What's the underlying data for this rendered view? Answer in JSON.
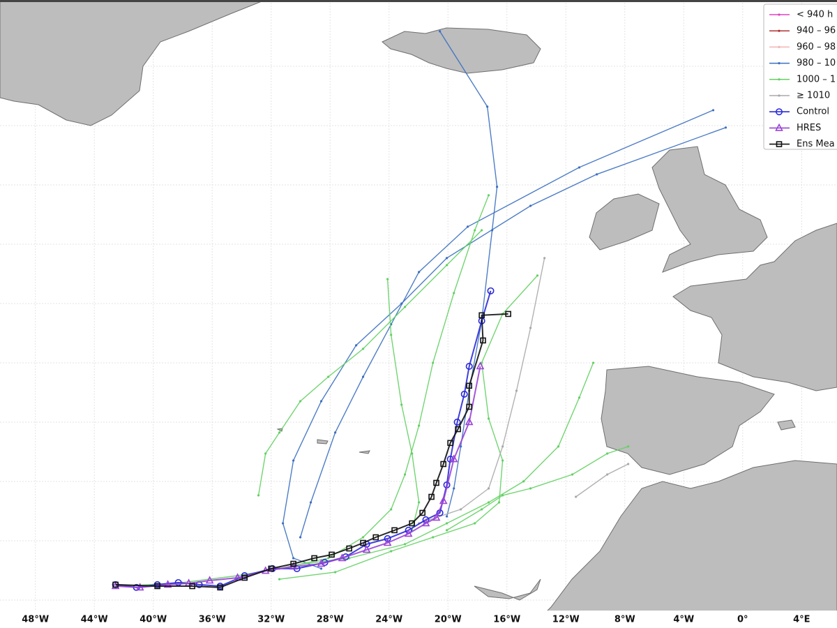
{
  "chart_data": {
    "type": "track-map",
    "xlim": [
      -50.4,
      6.4
    ],
    "ylim": [
      26.8,
      68.3
    ],
    "xticks": [
      {
        "value": -48,
        "label": "48°W"
      },
      {
        "value": -44,
        "label": "44°W"
      },
      {
        "value": -40,
        "label": "40°W"
      },
      {
        "value": -36,
        "label": "36°W"
      },
      {
        "value": -32,
        "label": "32°W"
      },
      {
        "value": -28,
        "label": "28°W"
      },
      {
        "value": -24,
        "label": "24°W"
      },
      {
        "value": -20,
        "label": "20°W"
      },
      {
        "value": -16,
        "label": "16°W"
      },
      {
        "value": -12,
        "label": "12°W"
      },
      {
        "value": -8,
        "label": "8°W"
      },
      {
        "value": -4,
        "label": "4°W"
      },
      {
        "value": 0,
        "label": "0°"
      },
      {
        "value": 4,
        "label": "4°E"
      }
    ],
    "legend": [
      {
        "label": "< 940 h",
        "color": "#e040c0"
      },
      {
        "label": "940 – 96",
        "color": "#b03030"
      },
      {
        "label": "960 – 98",
        "color": "#f2b4b4"
      },
      {
        "label": "980 – 10",
        "color": "#3a6fc0"
      },
      {
        "label": "1000 – 1",
        "color": "#62d062"
      },
      {
        "label": "≥ 1010",
        "color": "#a8a8a8"
      }
    ],
    "tracks": [
      {
        "color": "#3a6fc0",
        "lon": [
          -20.55,
          -17.33,
          -16.67,
          -17.0,
          -17.71,
          -18.56,
          -19.13,
          -19.6,
          -20.08
        ],
        "lat": [
          66.17,
          61.05,
          55.6,
          52.65,
          46.49,
          41.74,
          37.95,
          35.1,
          33.2
        ]
      },
      {
        "color": "#3a6fc0",
        "lon": [
          -1.15,
          -9.9,
          -14.4,
          -20.08,
          -23.15,
          -26.23,
          -28.6,
          -30.49,
          -31.2,
          -30.49,
          -28.6
        ],
        "lat": [
          59.63,
          56.45,
          54.31,
          50.76,
          47.67,
          44.83,
          41.03,
          37.0,
          32.73,
          30.36,
          29.65
        ]
      },
      {
        "color": "#3a6fc0",
        "lon": [
          -2.0,
          -11.09,
          -18.66,
          -21.97,
          -23.86,
          -25.76,
          -27.65,
          -29.31,
          -30.02
        ],
        "lat": [
          60.81,
          56.92,
          52.89,
          49.81,
          46.25,
          42.69,
          38.9,
          34.15,
          31.78
        ]
      },
      {
        "color": "#62d062",
        "lon": [
          -17.24,
          -18.18,
          -19.6,
          -21.02,
          -21.97,
          -22.92,
          -23.86,
          -25.76,
          -28.12,
          -31.44,
          -34.28,
          -38.06,
          -41.85
        ],
        "lat": [
          55.03,
          52.65,
          48.38,
          43.64,
          39.37,
          36.05,
          33.68,
          31.78,
          30.36,
          29.65,
          29.17,
          28.7,
          28.46
        ]
      },
      {
        "color": "#62d062",
        "lon": [
          -13.93,
          -16.29,
          -17.71,
          -17.24,
          -16.29,
          -16.53,
          -18.18,
          -21.02,
          -23.86,
          -27.65,
          -31.44
        ],
        "lat": [
          49.57,
          46.96,
          43.64,
          39.85,
          37.0,
          34.15,
          32.73,
          31.78,
          30.83,
          29.41,
          28.93
        ]
      },
      {
        "color": "#62d062",
        "lon": [
          -10.14,
          -11.09,
          -12.51,
          -14.87,
          -17.24,
          -20.08,
          -22.92,
          -26.7,
          -30.49
        ],
        "lat": [
          43.64,
          41.27,
          37.95,
          35.58,
          34.15,
          32.73,
          31.31,
          30.36,
          29.88
        ]
      },
      {
        "color": "#62d062",
        "lon": [
          -24.1,
          -23.86,
          -23.15,
          -22.44,
          -21.97,
          -22.44
        ],
        "lat": [
          49.33,
          45.54,
          40.79,
          37.47,
          34.15,
          32.26
        ]
      },
      {
        "color": "#62d062",
        "lon": [
          -32.86,
          -32.38,
          -31.44,
          -30.02,
          -28.12,
          -25.76,
          -22.92,
          -20.08,
          -17.71
        ],
        "lat": [
          34.63,
          37.47,
          38.9,
          41.03,
          42.69,
          44.59,
          47.44,
          50.28,
          52.65
        ]
      },
      {
        "color": "#62d062",
        "lon": [
          -7.77,
          -9.19,
          -11.56,
          -14.4,
          -16.29,
          -17.71,
          -20.08
        ],
        "lat": [
          37.95,
          37.47,
          36.05,
          35.1,
          34.63,
          33.68,
          32.26
        ]
      },
      {
        "color": "#a8a8a8",
        "lon": [
          -13.45,
          -14.4,
          -15.35,
          -16.29,
          -17.24,
          -19.13,
          -21.97
        ],
        "lat": [
          50.76,
          46.01,
          41.74,
          37.95,
          35.1,
          33.68,
          32.73
        ]
      },
      {
        "color": "#a8a8a8",
        "lon": [
          -7.77,
          -9.19,
          -11.32
        ],
        "lat": [
          36.76,
          36.05,
          34.53
        ]
      }
    ],
    "series": [
      {
        "name": "Control",
        "color": "#2a2ad8",
        "marker": "circle",
        "lon": [
          -42.56,
          -41.14,
          -39.72,
          -38.3,
          -36.88,
          -35.46,
          -33.8,
          -31.91,
          -30.25,
          -28.36,
          -26.94,
          -25.52,
          -24.1,
          -22.68,
          -21.5,
          -20.55,
          -20.08,
          -19.84,
          -19.37,
          -18.89,
          -18.56,
          -17.71,
          -17.1
        ],
        "lat": [
          28.56,
          28.37,
          28.56,
          28.7,
          28.56,
          28.46,
          29.17,
          29.65,
          29.65,
          30.07,
          30.45,
          31.31,
          31.69,
          32.26,
          32.97,
          33.44,
          35.34,
          37.09,
          39.61,
          41.51,
          43.4,
          46.49,
          48.53
        ]
      },
      {
        "name": "HRES",
        "color": "#9a44d6",
        "marker": "triangle",
        "lon": [
          -42.56,
          -40.9,
          -39.01,
          -37.59,
          -36.17,
          -34.28,
          -32.38,
          -30.49,
          -28.6,
          -27.18,
          -25.52,
          -24.1,
          -22.68,
          -21.5,
          -20.79,
          -20.31,
          -19.6,
          -18.56,
          -17.81
        ],
        "lat": [
          28.46,
          28.37,
          28.56,
          28.65,
          28.84,
          29.03,
          29.5,
          29.79,
          29.98,
          30.36,
          30.93,
          31.4,
          32.02,
          32.73,
          33.11,
          34.25,
          37.09,
          39.61,
          43.4
        ]
      },
      {
        "name": "Ens Mea",
        "color": "#111111",
        "marker": "square",
        "lon": [
          -42.56,
          -39.72,
          -37.35,
          -35.46,
          -33.8,
          -32.0,
          -30.49,
          -29.07,
          -27.89,
          -26.7,
          -25.76,
          -24.9,
          -23.63,
          -22.44,
          -21.73,
          -21.12,
          -20.79,
          -20.31,
          -19.84,
          -19.32,
          -18.56,
          -18.56,
          -17.62,
          -17.71,
          -15.91
        ],
        "lat": [
          28.56,
          28.46,
          28.46,
          28.37,
          29.03,
          29.65,
          29.98,
          30.36,
          30.6,
          31.02,
          31.4,
          31.78,
          32.26,
          32.73,
          33.44,
          34.53,
          35.48,
          36.76,
          38.19,
          39.13,
          40.65,
          42.08,
          45.16,
          46.87,
          46.96
        ]
      }
    ]
  }
}
